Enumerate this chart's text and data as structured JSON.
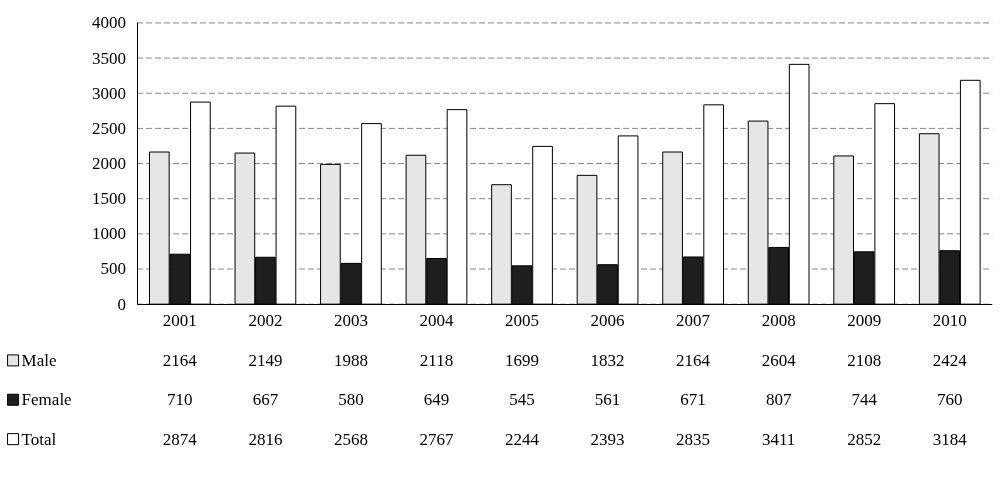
{
  "chart_data": {
    "type": "bar",
    "categories": [
      "2001",
      "2002",
      "2003",
      "2004",
      "2005",
      "2006",
      "2007",
      "2008",
      "2009",
      "2010"
    ],
    "series": [
      {
        "name": "Male",
        "color": "#e6e6e6",
        "values": [
          2164,
          2149,
          1988,
          2118,
          1699,
          1832,
          2164,
          2604,
          2108,
          2424
        ]
      },
      {
        "name": "Female",
        "color": "#1e1e1e",
        "values": [
          710,
          667,
          580,
          649,
          545,
          561,
          671,
          807,
          744,
          760
        ]
      },
      {
        "name": "Total",
        "color": "#ffffff",
        "values": [
          2874,
          2816,
          2568,
          2767,
          2244,
          2393,
          2835,
          3411,
          2852,
          3184
        ]
      }
    ],
    "ylim": [
      0,
      4000
    ],
    "yticks": [
      0,
      500,
      1000,
      1500,
      2000,
      2500,
      3000,
      3500,
      4000
    ],
    "grid": "y",
    "legend": "bottom",
    "data_labels": true
  }
}
